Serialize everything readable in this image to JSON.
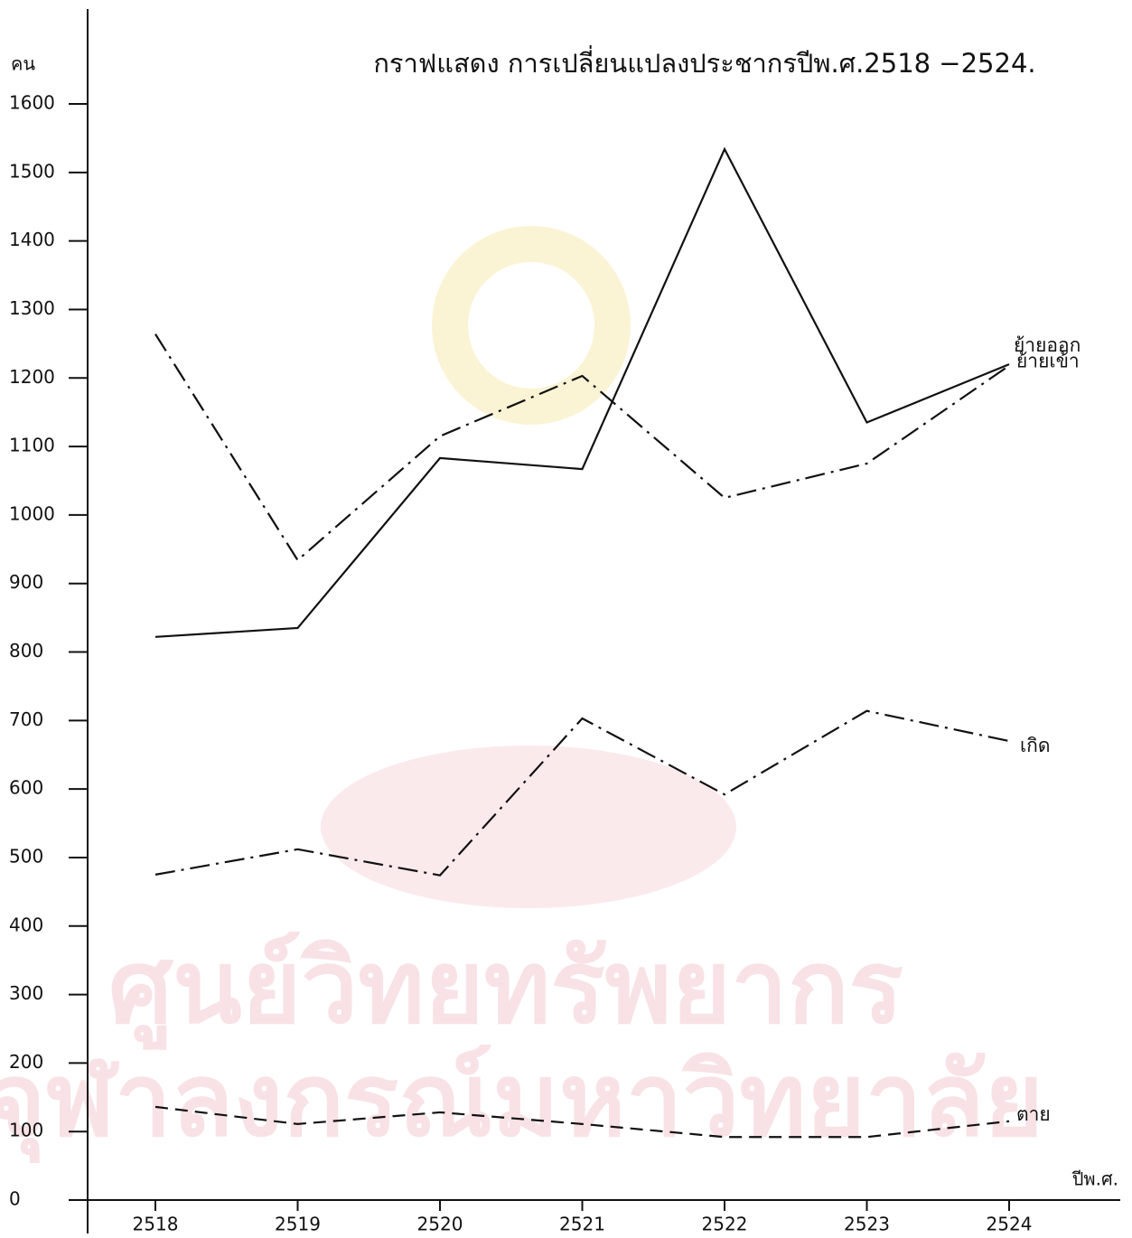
{
  "chart_data": {
    "type": "line",
    "title": "กราฟแสดง การเปลี่ยนแปลงประชากรปีพ.ศ.2518 −2524.",
    "y_label": "คน",
    "x_label": "ปีพ.ศ.",
    "watermark": [
      "ศูนย์วิทยทรัพยากร",
      "จุฬาลงกรณ์มหาวิทยาลัย"
    ],
    "categories": [
      "2518",
      "2519",
      "2520",
      "2521",
      "2522",
      "2523",
      "2524"
    ],
    "series": [
      {
        "name": "ย้ายออก",
        "color": "#111111",
        "dash": "solid",
        "values": [
          822,
          835,
          1083,
          1067,
          1534,
          1135,
          1220
        ]
      },
      {
        "name": "ย้ายเข้า",
        "color": "#111111",
        "dash": "dashdot",
        "values": [
          1264,
          934,
          1115,
          1203,
          1025,
          1075,
          1218
        ]
      },
      {
        "name": "เกิด",
        "color": "#111111",
        "dash": "dashdot",
        "values": [
          475,
          512,
          474,
          703,
          592,
          714,
          670
        ]
      },
      {
        "name": "ตาย",
        "color": "#111111",
        "dash": "dashed",
        "values": [
          136,
          111,
          128,
          111,
          92,
          92,
          115
        ]
      }
    ],
    "ylim": [
      0,
      1600
    ],
    "yticks": [
      0,
      100,
      200,
      300,
      400,
      500,
      600,
      700,
      800,
      900,
      1000,
      1100,
      1200,
      1300,
      1400,
      1500,
      1600
    ]
  }
}
